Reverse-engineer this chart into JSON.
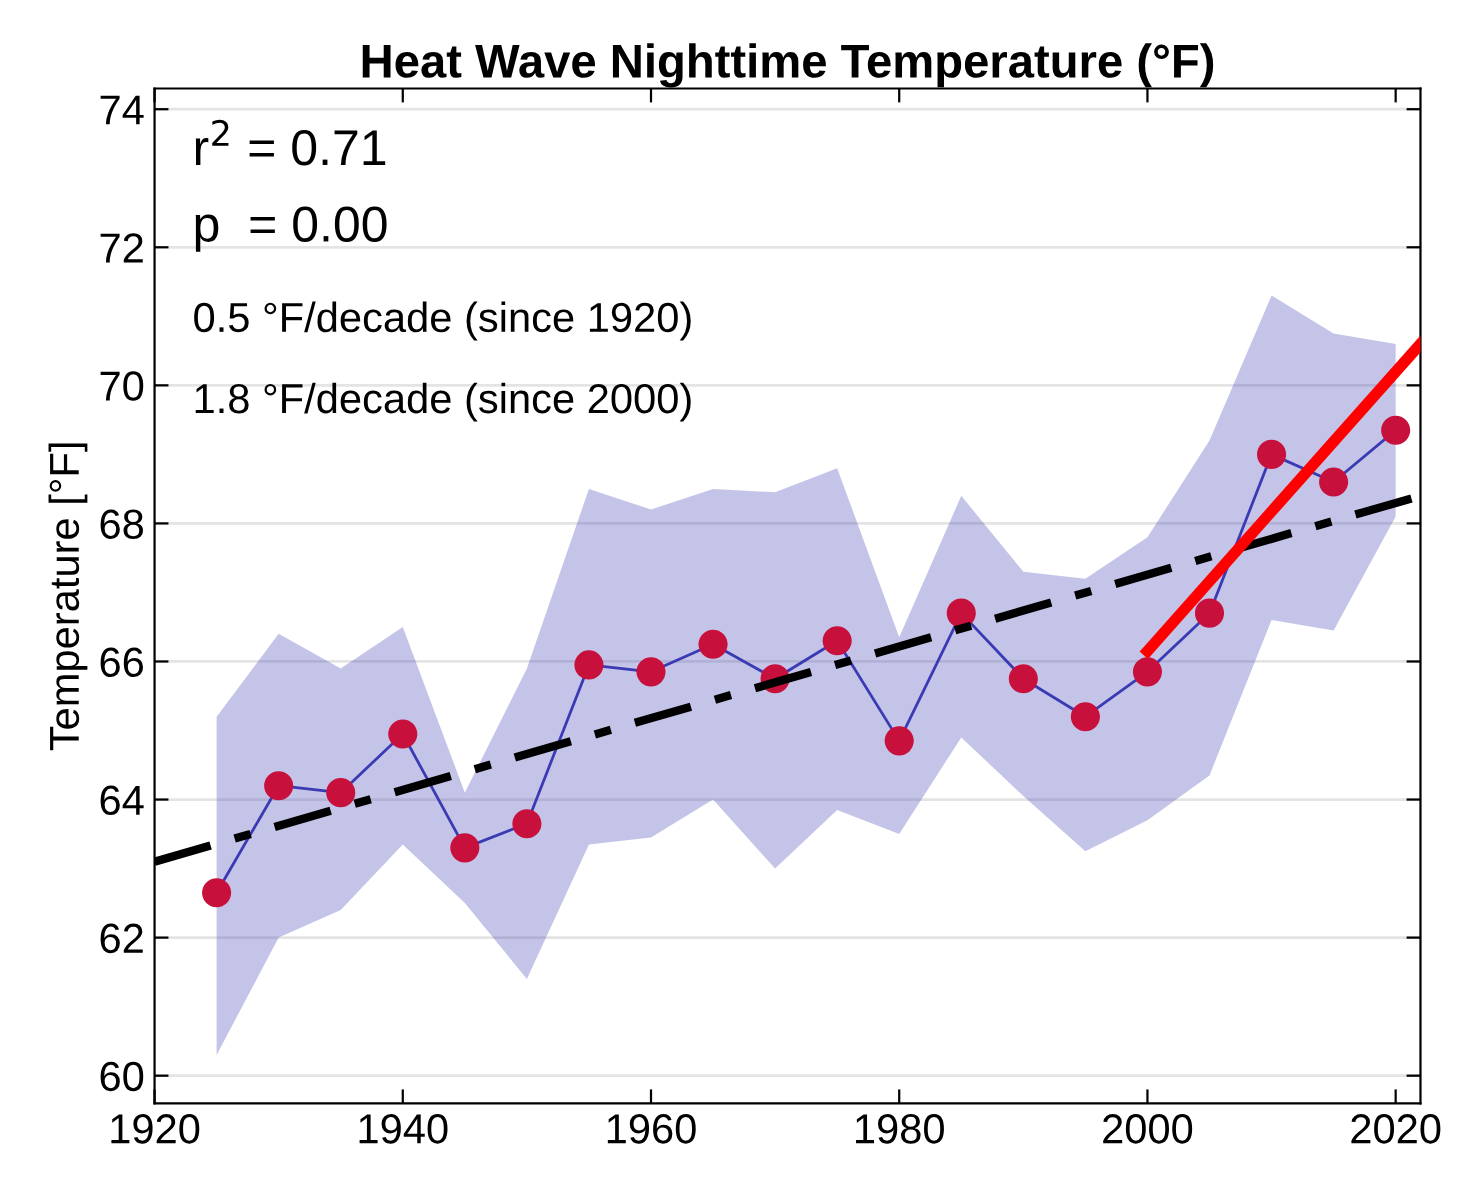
{
  "chart_data": {
    "type": "line",
    "title": "Heat Wave Nighttime Temperature (°F)",
    "ylabel": "Temperature [°F]",
    "annotations": [
      "r$^{2}$ = 0.71",
      "p  = 0.00",
      "0.5 °F/decade (since 1920)",
      "1.8 °F/decade (since 2000)"
    ],
    "series": [
      {
        "color": "#3a3ab4",
        "marker": "circle",
        "colors": [
          "#c8103c",
          "#c8103c",
          "#c8103c",
          "#c8103c",
          "#c8103c",
          "#c8103c",
          "#c8103c",
          "#c8103c",
          "#c8103c",
          "#c8103c",
          "#c8103c",
          "#c8103c",
          "#c8103c",
          "#c8103c",
          "#c8103c",
          "#c8103c",
          "#c8103c",
          "#c8103c",
          "#c8103c",
          "#c8103c"
        ],
        "line_style": "solid",
        "x": [
          1925,
          1930,
          1935,
          1940,
          1945,
          1950,
          1955,
          1960,
          1965,
          1970,
          1975,
          1980,
          1985,
          1990,
          1995,
          2000,
          2005,
          2010,
          2015,
          2020
        ],
        "values": [
          62.65,
          64.2,
          64.1,
          64.95,
          63.3,
          63.65,
          65.95,
          65.85,
          66.25,
          65.75,
          66.3,
          64.85,
          66.7,
          65.75,
          65.2,
          65.85,
          66.7,
          69.0,
          68.6,
          69.35
        ],
        "upper": [
          65.2,
          66.4,
          65.9,
          66.5,
          64.1,
          65.9,
          68.5,
          68.2,
          68.5,
          68.45,
          68.8,
          66.35,
          68.4,
          67.3,
          67.2,
          67.8,
          69.2,
          71.3,
          70.75,
          70.6
        ],
        "lower": [
          60.3,
          62.0,
          62.4,
          63.35,
          62.5,
          61.4,
          63.35,
          63.45,
          64.0,
          63.0,
          63.85,
          63.5,
          64.9,
          64.05,
          63.25,
          63.7,
          64.35,
          66.6,
          66.45,
          68.1
        ]
      },
      {
        "color": "#000000",
        "marker": "none",
        "line_style": "dashdot",
        "x": [
          1920,
          2022
        ],
        "values": [
          63.1,
          68.4
        ]
      },
      {
        "color": "#ff0000",
        "marker": "none",
        "line_style": "solid",
        "x": [
          2000,
          2022
        ],
        "values": [
          66.15,
          70.6
        ]
      }
    ],
    "xlim": [
      1920,
      2022
    ],
    "ylim": [
      59.6,
      74.3
    ],
    "xticks": [
      1920,
      1940,
      1960,
      1980,
      2000,
      2020
    ],
    "yticks": [
      60,
      62,
      64,
      66,
      68,
      70,
      72,
      74
    ],
    "grid": "y"
  }
}
